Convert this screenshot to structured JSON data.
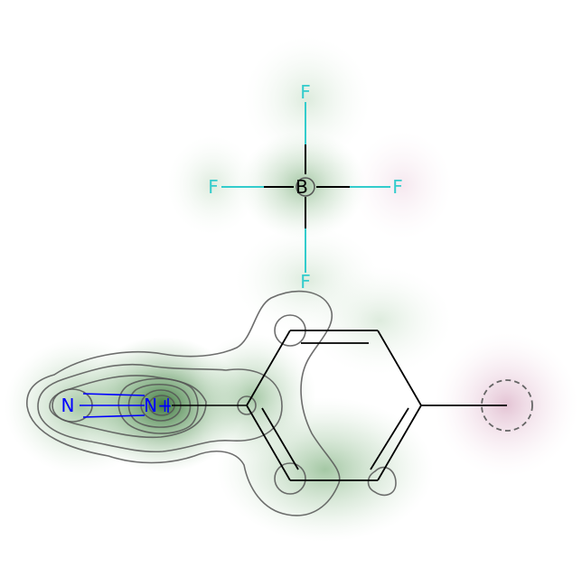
{
  "molecule": {
    "colors": {
      "bond": "#000000",
      "fluorine": "#33cccc",
      "nitrogen": "#0000ff",
      "boron": "#000000",
      "contour": "#555555",
      "positive_contribution": "#2e7d32",
      "negative_contribution": "#c27ba0"
    },
    "atoms": [
      {
        "id": "F1",
        "label": "F",
        "element": "fluorine"
      },
      {
        "id": "F2",
        "label": "F",
        "element": "fluorine"
      },
      {
        "id": "F3",
        "label": "F",
        "element": "fluorine"
      },
      {
        "id": "F4",
        "label": "F",
        "element": "fluorine"
      },
      {
        "id": "B",
        "label": "B",
        "element": "boron"
      },
      {
        "id": "N1",
        "label": "N",
        "element": "nitrogen"
      },
      {
        "id": "N2",
        "label": "N+",
        "element": "nitrogen"
      }
    ],
    "highlighted_atom": "methyl-carbon"
  }
}
